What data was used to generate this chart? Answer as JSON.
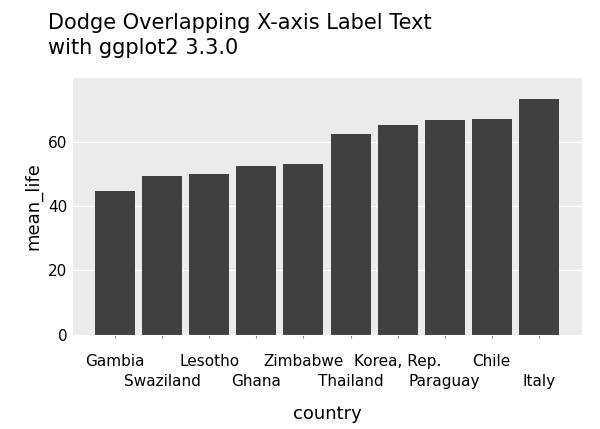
{
  "categories": [
    "Gambia",
    "Swaziland",
    "Lesotho",
    "Ghana",
    "Zimbabwe",
    "Thailand",
    "Korea, Rep.",
    "Paraguay",
    "Chile",
    "Italy"
  ],
  "values": [
    44.5,
    49.3,
    50.0,
    52.5,
    52.9,
    62.3,
    65.0,
    66.6,
    67.1,
    73.2
  ],
  "bar_color": "#404040",
  "title_line1": "Dodge Overlapping X-axis Label Text",
  "title_line2": "with ggplot2 3.3.0",
  "xlabel": "country",
  "ylabel": "mean_life",
  "ylim": [
    0,
    80
  ],
  "yticks": [
    0,
    20,
    40,
    60
  ],
  "background_color": "#ffffff",
  "panel_background": "#ebebeb",
  "grid_color": "#ffffff",
  "spine_color": "#ffffff",
  "title_fontsize": 15,
  "axis_label_fontsize": 13,
  "tick_label_fontsize": 11,
  "row1_indices": [
    0,
    2,
    4,
    6,
    8
  ],
  "row2_indices": [
    1,
    3,
    5,
    7,
    9
  ]
}
